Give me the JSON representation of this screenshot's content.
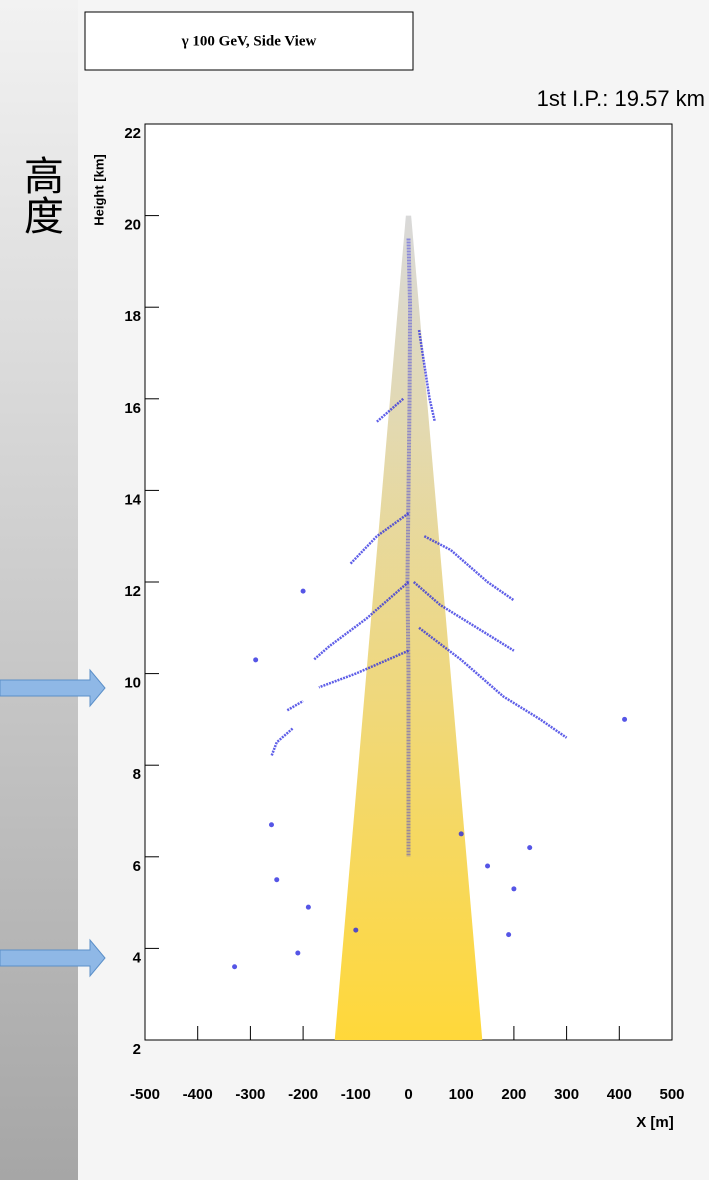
{
  "chart_data": {
    "type": "shower",
    "side_label": "高度",
    "title": "γ 100 GeV, Side View",
    "annotation": "1st I.P.: 19.57 km",
    "xlabel": "X [m]",
    "ylabel": "Height [km]",
    "xlim": [
      -500,
      500
    ],
    "ylim": [
      2,
      22
    ],
    "xticks": [
      -500,
      -400,
      -300,
      -200,
      -100,
      0,
      100,
      200,
      300,
      400,
      500
    ],
    "yticks": [
      2,
      4,
      6,
      8,
      10,
      12,
      14,
      16,
      18,
      20,
      22
    ],
    "cone": {
      "x": [
        -140,
        -5,
        5,
        140
      ],
      "y": [
        2,
        20,
        20,
        2
      ],
      "colors": [
        "#d9d9d9",
        "#ffd83a"
      ]
    },
    "track_color": "#2a2ae0",
    "tracks": [
      {
        "x": [
          0,
          3,
          2,
          0,
          -2,
          0,
          0
        ],
        "y": [
          19.5,
          18,
          16,
          14,
          12,
          10,
          6
        ]
      },
      {
        "x": [
          0,
          -60,
          -110
        ],
        "y": [
          13.5,
          13,
          12.4
        ]
      },
      {
        "x": [
          0,
          -80,
          -150,
          -180
        ],
        "y": [
          12,
          11.2,
          10.6,
          10.3
        ]
      },
      {
        "x": [
          0,
          -100,
          -170
        ],
        "y": [
          10.5,
          10,
          9.7
        ]
      },
      {
        "x": [
          30,
          80,
          150,
          200
        ],
        "y": [
          13,
          12.7,
          12,
          11.6
        ]
      },
      {
        "x": [
          20,
          100,
          180,
          250,
          300
        ],
        "y": [
          11,
          10.3,
          9.5,
          9,
          8.6
        ]
      },
      {
        "x": [
          10,
          60,
          130,
          200
        ],
        "y": [
          12,
          11.5,
          11,
          10.5
        ]
      },
      {
        "x": [
          20,
          40,
          50
        ],
        "y": [
          17.5,
          16,
          15.5
        ]
      },
      {
        "x": [
          -10,
          -30,
          -60
        ],
        "y": [
          16,
          15.8,
          15.5
        ]
      },
      {
        "x": [
          -220,
          -250,
          -260
        ],
        "y": [
          8.8,
          8.5,
          8.2
        ]
      },
      {
        "x": [
          -230,
          -200
        ],
        "y": [
          9.2,
          9.4
        ]
      }
    ],
    "points": {
      "x": [
        -290,
        -260,
        -330,
        -210,
        -190,
        -200,
        410,
        100,
        230,
        200,
        190,
        -250,
        150,
        -100
      ],
      "y": [
        10.3,
        6.7,
        3.6,
        3.9,
        4.9,
        11.8,
        9.0,
        6.5,
        6.2,
        5.3,
        4.3,
        5.5,
        5.8,
        4.4
      ]
    }
  }
}
